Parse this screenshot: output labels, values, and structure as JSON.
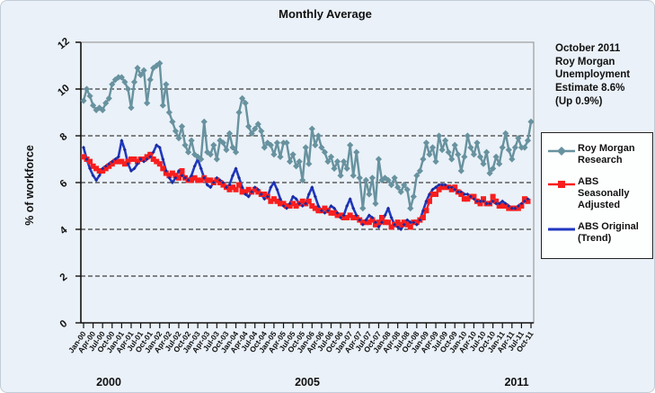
{
  "chart_data": {
    "type": "line",
    "title": "Monthly Average",
    "ylabel": "% of workforce",
    "ylim": [
      0,
      12
    ],
    "yticks": [
      0,
      2,
      4,
      6,
      8,
      10,
      12
    ],
    "gridlines": {
      "style": "dashed",
      "at": [
        2,
        4,
        6,
        8,
        10
      ]
    },
    "legend_position": "right",
    "annotation": "October 2011\nRoy Morgan\nUnemployment\nEstimate 8.6%\n(Up 0.9%)",
    "x_frequency": "monthly",
    "x_start": "Jan-2000",
    "x_end": "Oct-2011",
    "x_tick_labels": [
      "Jan-00",
      "Apr-00",
      "Jul-00",
      "Oct-00",
      "Jan-01",
      "Apr-01",
      "Jul-01",
      "Oct-01",
      "Jan-02",
      "Apr-02",
      "Jul-02",
      "Oct-02",
      "Jan-03",
      "Apr-03",
      "Jul-03",
      "Oct-03",
      "Jan-04",
      "Apr-04",
      "Jul-04",
      "Oct-04",
      "Jan-05",
      "Apr-05",
      "Jul-05",
      "Oct-05",
      "Jan-06",
      "Apr-06",
      "Jul-06",
      "Oct-06",
      "Jan-07",
      "Apr-07",
      "Jul-07",
      "Oct-07",
      "Jan-08",
      "Apr-08",
      "Jul-08",
      "Oct-08",
      "Jan-09",
      "Apr-09",
      "Jul-09",
      "Oct-09",
      "Jan-10",
      "Apr-10",
      "Jul-10",
      "Oct-10",
      "Jan-11",
      "Apr-11",
      "Jul-11",
      "Oct-11"
    ],
    "year_labels": [
      "2000",
      "2005",
      "2011"
    ],
    "series": [
      {
        "name": "Roy Morgan Research",
        "color": "#68929f",
        "marker": "diamond",
        "values": [
          9.5,
          10.0,
          9.7,
          9.3,
          9.1,
          9.2,
          9.1,
          9.4,
          9.6,
          10.2,
          10.4,
          10.5,
          10.5,
          10.3,
          10.0,
          9.2,
          10.3,
          10.9,
          10.6,
          10.8,
          9.4,
          10.4,
          10.9,
          11.0,
          11.1,
          9.3,
          10.2,
          9.0,
          8.6,
          8.2,
          7.9,
          8.4,
          7.6,
          7.3,
          7.8,
          7.2,
          7.1,
          7.0,
          8.6,
          7.3,
          7.2,
          7.6,
          7.0,
          7.8,
          7.7,
          7.4,
          8.1,
          7.5,
          7.3,
          9.0,
          9.6,
          9.4,
          8.4,
          8.1,
          8.3,
          8.5,
          8.2,
          7.5,
          7.7,
          7.6,
          7.2,
          7.7,
          7.1,
          7.7,
          7.7,
          6.9,
          7.2,
          6.7,
          6.9,
          6.1,
          7.5,
          6.8,
          8.3,
          7.6,
          8.0,
          7.5,
          7.3,
          6.9,
          7.1,
          6.6,
          6.9,
          6.3,
          6.9,
          6.6,
          7.6,
          6.3,
          7.3,
          6.2,
          4.9,
          6.1,
          5.5,
          6.2,
          5.1,
          7.0,
          6.1,
          6.2,
          6.1,
          5.9,
          6.2,
          5.8,
          5.6,
          5.9,
          5.7,
          4.9,
          5.4,
          6.3,
          6.5,
          7.0,
          7.7,
          7.2,
          7.5,
          6.9,
          8.0,
          7.4,
          7.8,
          7.3,
          7.0,
          7.6,
          7.2,
          6.5,
          7.1,
          8.0,
          7.5,
          7.2,
          7.7,
          7.1,
          6.8,
          7.3,
          6.4,
          6.6,
          7.1,
          6.8,
          7.5,
          8.1,
          7.4,
          7.0,
          7.5,
          7.9,
          7.5,
          7.5,
          7.8,
          8.6
        ]
      },
      {
        "name": "ABS Seasonally Adjusted",
        "color": "#f81e1e",
        "marker": "square",
        "values": [
          7.1,
          7.0,
          6.9,
          6.7,
          6.6,
          6.5,
          6.5,
          6.6,
          6.7,
          6.8,
          6.9,
          6.9,
          6.9,
          6.8,
          6.9,
          7.0,
          7.0,
          6.9,
          7.0,
          7.0,
          7.1,
          7.2,
          7.0,
          6.9,
          6.8,
          6.6,
          6.4,
          6.3,
          6.4,
          6.3,
          6.2,
          6.5,
          6.2,
          6.1,
          6.1,
          6.2,
          6.1,
          6.1,
          6.2,
          6.1,
          6.1,
          6.0,
          6.1,
          6.0,
          5.9,
          5.8,
          5.7,
          5.8,
          5.7,
          5.9,
          5.6,
          5.6,
          5.7,
          5.6,
          5.7,
          5.6,
          5.5,
          5.5,
          5.4,
          5.2,
          5.3,
          5.2,
          5.1,
          5.1,
          5.0,
          5.0,
          5.1,
          5.0,
          5.1,
          5.2,
          5.1,
          5.2,
          5.0,
          4.9,
          4.8,
          4.8,
          4.9,
          4.8,
          4.7,
          4.7,
          4.6,
          4.6,
          4.5,
          4.5,
          4.6,
          4.5,
          4.5,
          4.4,
          4.3,
          4.3,
          4.3,
          4.4,
          4.2,
          4.3,
          4.5,
          4.3,
          4.3,
          4.1,
          4.2,
          4.3,
          4.2,
          4.3,
          4.2,
          4.1,
          4.3,
          4.3,
          4.4,
          4.5,
          4.8,
          5.2,
          5.5,
          5.5,
          5.7,
          5.8,
          5.8,
          5.8,
          5.7,
          5.8,
          5.6,
          5.5,
          5.3,
          5.3,
          5.4,
          5.4,
          5.2,
          5.1,
          5.3,
          5.1,
          5.1,
          5.4,
          5.2,
          5.0,
          5.0,
          5.0,
          4.9,
          4.9,
          4.9,
          4.9,
          5.0,
          5.3,
          5.2
        ]
      },
      {
        "name": "ABS Original (Trend)",
        "color": "#2038c0",
        "marker": "small-diamond",
        "values": [
          7.5,
          7.0,
          6.6,
          6.3,
          6.1,
          6.3,
          6.6,
          6.7,
          6.8,
          6.9,
          7.0,
          7.1,
          7.8,
          7.4,
          6.8,
          6.5,
          6.6,
          6.8,
          7.0,
          6.9,
          7.0,
          7.1,
          7.3,
          7.6,
          7.5,
          7.0,
          6.5,
          6.2,
          6.0,
          6.2,
          6.5,
          6.3,
          6.2,
          6.1,
          6.3,
          6.7,
          7.0,
          6.6,
          6.2,
          5.9,
          5.8,
          6.0,
          6.2,
          6.1,
          6.0,
          5.8,
          5.9,
          6.3,
          6.6,
          6.2,
          5.8,
          5.5,
          5.4,
          5.6,
          5.8,
          5.7,
          5.5,
          5.3,
          5.4,
          5.8,
          6.0,
          5.7,
          5.3,
          5.0,
          4.9,
          5.1,
          5.4,
          5.3,
          5.1,
          5.0,
          5.1,
          5.5,
          5.8,
          5.4,
          5.0,
          4.8,
          4.7,
          4.8,
          5.0,
          4.9,
          4.7,
          4.5,
          4.6,
          5.0,
          5.3,
          4.9,
          4.6,
          4.4,
          4.2,
          4.4,
          4.6,
          4.5,
          4.3,
          4.1,
          4.3,
          4.6,
          4.9,
          4.5,
          4.2,
          4.1,
          4.0,
          4.2,
          4.4,
          4.3,
          4.3,
          4.2,
          4.4,
          4.8,
          5.2,
          5.5,
          5.7,
          5.8,
          5.9,
          5.9,
          5.9,
          5.8,
          5.8,
          5.7,
          5.6,
          5.6,
          5.5,
          5.5,
          5.4,
          5.3,
          5.2,
          5.2,
          5.2,
          5.1,
          5.1,
          5.2,
          5.1,
          5.1,
          5.2,
          5.1,
          5.0,
          4.9,
          4.9,
          5.0,
          5.1,
          5.2,
          5.3
        ]
      }
    ]
  }
}
